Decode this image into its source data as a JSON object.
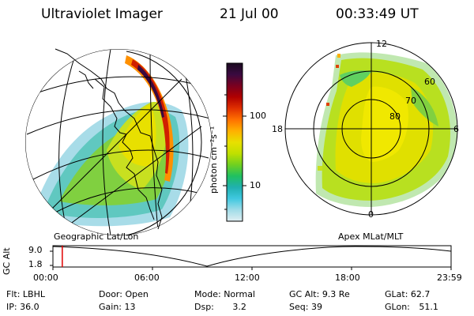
{
  "header": {
    "instrument": "Ultraviolet Imager",
    "date": "21 Jul 00",
    "time": "00:33:49 UT"
  },
  "colorbar": {
    "unit_label": "photon cm⁻²s⁻¹",
    "ticks": [
      "100",
      "10"
    ],
    "colors": [
      "#1a0a20",
      "#3a0a40",
      "#7a0020",
      "#b00000",
      "#e03000",
      "#ff7000",
      "#ffb000",
      "#e8e000",
      "#c0e000",
      "#70d020",
      "#20c060",
      "#20b0b0",
      "#40c8e0",
      "#a0dce8",
      "#e0eef2"
    ]
  },
  "geo_panel": {
    "label": "Geographic Lat/Lon"
  },
  "polar_panel": {
    "label": "Apex MLat/MLT",
    "mlt_labels": [
      "12",
      "18",
      "6",
      "0"
    ],
    "lat_labels": [
      "60",
      "70",
      "80"
    ]
  },
  "timeline": {
    "ylabel": "GC Alt",
    "y_ticks": [
      "9.0",
      "1.8"
    ],
    "x_ticks": [
      "00:00",
      "06:00",
      "12:00",
      "18:00",
      "23:59"
    ],
    "marker_fraction": 0.0235
  },
  "info": {
    "row1": [
      {
        "key": "Flt:",
        "val": "LBHL"
      },
      {
        "key": "Door:",
        "val": "Open"
      },
      {
        "key": "Mode:",
        "val": "Normal"
      },
      {
        "key": "GC Alt:",
        "val": "9.3 Re"
      },
      {
        "key": "GLat:",
        "val": "62.7"
      }
    ],
    "row2": [
      {
        "key": "IP:",
        "val": "36.0"
      },
      {
        "key": "Gain:",
        "val": "13"
      },
      {
        "key": "Dsp:",
        "val": "3.2"
      },
      {
        "key": "Seq:",
        "val": "39"
      },
      {
        "key": "GLon:",
        "val": "51.1"
      }
    ]
  }
}
